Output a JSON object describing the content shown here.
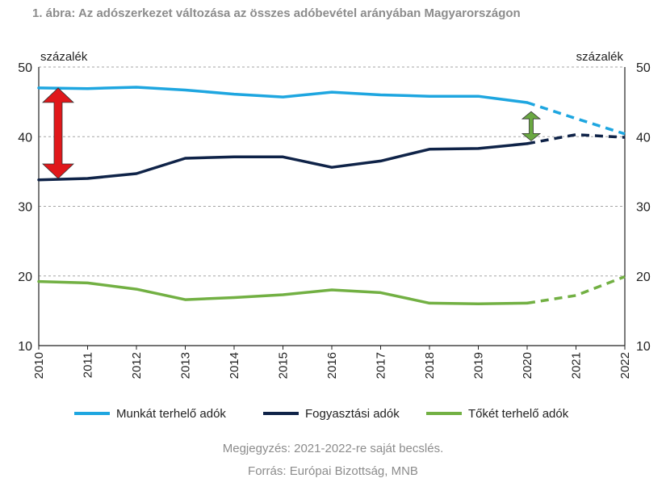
{
  "title": "1. ábra: Az adószerkezet változása az összes adóbevétel arányában Magyarországon",
  "note": "Megjegyzés: 2021-2022-re saját becslés.",
  "source": "Forrás: Európai Bizottság, MNB",
  "chart_data": {
    "type": "line",
    "x": [
      "2010",
      "2011",
      "2012",
      "2013",
      "2014",
      "2015",
      "2016",
      "2017",
      "2018",
      "2019",
      "2020",
      "2021",
      "2022"
    ],
    "y_unit_left": "százalék",
    "y_unit_right": "százalék",
    "ylim": [
      10,
      50
    ],
    "yticks": [
      10,
      20,
      30,
      40,
      50
    ],
    "grid": true,
    "legend_position": "bottom",
    "estimate_from": "2020",
    "series": [
      {
        "name": "Munkát terhelő adók",
        "color": "#1ea6e0",
        "values": [
          47.0,
          46.9,
          47.1,
          46.7,
          46.1,
          45.7,
          46.4,
          46.0,
          45.8,
          45.8,
          44.9,
          42.6,
          40.4
        ]
      },
      {
        "name": "Fogyasztási adók",
        "color": "#0f2348",
        "values": [
          33.8,
          34.0,
          34.7,
          36.9,
          37.1,
          37.1,
          35.6,
          36.5,
          38.2,
          38.3,
          39.0,
          40.3,
          39.9
        ]
      },
      {
        "name": "Tőkét terhelő adók",
        "color": "#72b043",
        "values": [
          19.2,
          19.0,
          18.1,
          16.6,
          16.9,
          17.3,
          18.0,
          17.6,
          16.1,
          16.0,
          16.1,
          17.2,
          19.9
        ]
      }
    ],
    "annotations": [
      {
        "type": "double-arrow",
        "color": "#e0181b",
        "x": "2010",
        "from": 34.0,
        "to": 47.0
      },
      {
        "type": "double-arrow",
        "color": "#6aa842",
        "x": "2020",
        "from": 39.4,
        "to": 43.6
      }
    ]
  }
}
